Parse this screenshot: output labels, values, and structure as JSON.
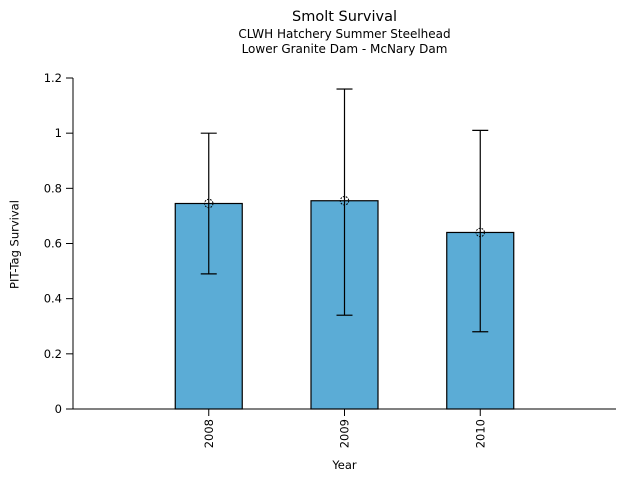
{
  "chart_data": {
    "type": "bar",
    "title": "Smolt Survival",
    "subtitle1": "CLWH Hatchery Summer Steelhead",
    "subtitle2": "Lower Granite Dam - McNary Dam",
    "xlabel": "Year",
    "ylabel": "PIT-Tag Survival",
    "categories": [
      "2008",
      "2009",
      "2010"
    ],
    "values": [
      0.745,
      0.755,
      0.64
    ],
    "error_low": [
      0.49,
      0.34,
      0.28
    ],
    "error_high": [
      1.0,
      1.16,
      1.01
    ],
    "ylim": [
      0,
      1.2
    ],
    "yticks": [
      0,
      0.2,
      0.4,
      0.6,
      0.8,
      1,
      1.2
    ],
    "ytick_labels": [
      "0",
      "0.2",
      "0.4",
      "0.6",
      "0.8",
      "1",
      "1.2"
    ],
    "bar_color": "#5bacd6",
    "edge_color": "#000000",
    "marker": "open-circle",
    "grid": false,
    "legend": null
  }
}
